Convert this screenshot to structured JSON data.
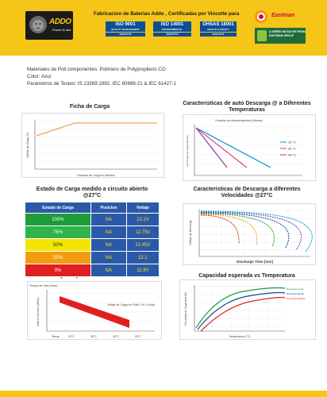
{
  "header": {
    "brand": "ADDO",
    "brand_tagline": "Power to last",
    "title": "Fabricacion de Baterias Addo , Certificadas por Vincotte para",
    "certs": [
      {
        "main": "ISO 9001",
        "sub": "QUALITY MANAGEMENT",
        "badge": "VINÇOTTE"
      },
      {
        "main": "ISO 14001",
        "sub": "ENVIRONMENTAL MANAGEMENT",
        "badge": "VINÇOTTE"
      },
      {
        "main": "OHSAS 18001",
        "sub": "HEALTH & SAFETY",
        "badge": "VINÇOTTE"
      }
    ],
    "eastman": "Eastman",
    "eastman_sub": "",
    "green_badge": "A GREEN INITIATIVE FROM EASTMAN GROUP"
  },
  "info": {
    "line1": "Materiales de Poli componentes: Polimero de Polypropileno CO",
    "line2": "Color: Azul",
    "line3": "Parametros de Testeo: IS 13369:1992, IEC 60896-21 & IEC 61427-1"
  },
  "panels": {
    "carga_title": "Ficha de Carga",
    "autodescarga_title": "Caracteristicas de auto Descarga @ a Diferentes Temperaturas",
    "estado_title": "Estado de Carga medido a circuito abierto @27°C",
    "descarga_title": "Caracteristicas de Descarga a diferentes Velocidades @27°C",
    "vida_title": "Vida Util y Temperatura de Servicio en Flote",
    "capacidad_title": "Capacidad esperada vs Temperatura"
  },
  "table": {
    "headers": [
      "Estado de Carga",
      "Posicion",
      "Voltaje"
    ],
    "rows": [
      {
        "estado": "100%",
        "pos": "NA",
        "volt": "13.1V",
        "color": "#1e9b3a"
      },
      {
        "estado": "75%",
        "pos": "NA",
        "volt": "12.75V",
        "color": "#2fb34a"
      },
      {
        "estado": "50%",
        "pos": "NA",
        "volt": "12.45V",
        "color": "#f2e600"
      },
      {
        "estado": "25%",
        "pos": "NA",
        "volt": "12.1",
        "color": "#f39c12"
      },
      {
        "estado": "0%",
        "pos": "NA",
        "volt": "11.9V",
        "color": "#e02020"
      }
    ]
  },
  "chart_data": [
    {
      "type": "line",
      "title": "Ficha de Carga",
      "xlabel": "Duracion de Carga en Minutos",
      "ylabel": "Voltaje de Carga (V)",
      "series": [
        {
          "x": [
            0,
            5,
            20,
            50,
            100
          ],
          "y": [
            12.8,
            13.2,
            13.8,
            14.4,
            14.4
          ]
        }
      ]
    },
    {
      "type": "line",
      "title": "Caracteristicas de auto Descarga @ a Diferentes Temperaturas",
      "xlabel": "Duracion de Almacenamiento (Meses)",
      "ylabel": "Porcentaje de Capacidad (%)",
      "legend": "right",
      "series": [
        {
          "name": "25 °C",
          "color": "#0091d5",
          "x": [
            0,
            12
          ],
          "y": [
            100,
            58
          ]
        },
        {
          "name": "35 °C",
          "color": "#e0457b",
          "x": [
            0,
            8
          ],
          "y": [
            100,
            58
          ]
        },
        {
          "name": "45 °C",
          "color": "#7e3fb5",
          "x": [
            0,
            5
          ],
          "y": [
            100,
            58
          ]
        }
      ]
    },
    {
      "type": "line",
      "title": "Caracteristicas de Descarga a diferentes Velocidades @27°C",
      "xlabel": "Discharge Time [min]",
      "ylabel": "Voltaje de Descarga",
      "xscale": "log",
      "series_count": 6
    },
    {
      "type": "bar",
      "title": "Vida Util y Temperatura de Servicio en Flote",
      "xlabel": "Temp",
      "ylabel": "Vida en Servicio (Años)",
      "categories": [
        "20°C",
        "30°C",
        "40°C",
        "50°C"
      ],
      "annotation": "Voltaje de Carga en Flote 2.3v x Celda",
      "series": [
        {
          "name": "Tiempo de Vida (Años)",
          "color": "#e02020",
          "x": [
            20,
            50
          ],
          "y_top": [
            18,
            6
          ],
          "y_bottom": [
            16,
            4
          ]
        }
      ]
    },
    {
      "type": "line",
      "title": "Capacidad esperada vs Temperatura",
      "xlabel": "Temperatura (°C)",
      "ylabel": "Porcentaje de Capacidad (%)",
      "legend": "right",
      "series": [
        {
          "name": "Descarga Rapida",
          "color": "#e02020"
        },
        {
          "name": "Descarga Media",
          "color": "#0b4f96"
        },
        {
          "name": "Descarga Lenta",
          "color": "#1e9b3a"
        }
      ]
    }
  ]
}
